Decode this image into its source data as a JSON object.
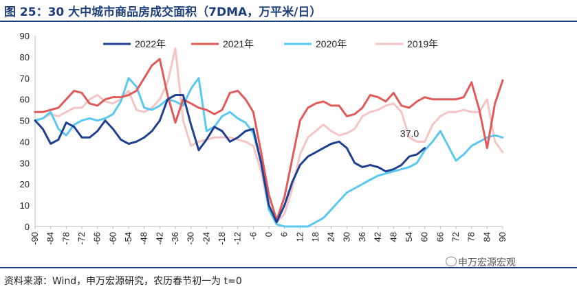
{
  "title": "图 25：30 大中城市商品房成交面积（7DMA，万平米/日）",
  "source": "资料来源：Wind，申万宏源研究，农历春节初一为 t=0",
  "brand": "申万宏源宏观",
  "brand_icon": "wechat-icon",
  "chart_data": {
    "type": "line",
    "title": "图 25：30 大中城市商品房成交面积（7DMA，万平米/日）",
    "xlabel": "",
    "ylabel": "",
    "xlim": [
      -90,
      90
    ],
    "ylim": [
      0,
      90
    ],
    "yticks": [
      0,
      10,
      20,
      30,
      40,
      50,
      60,
      70,
      80,
      90
    ],
    "xticks": [
      -90,
      -84,
      -78,
      -72,
      -66,
      -60,
      -54,
      -48,
      -42,
      -36,
      -30,
      -24,
      -18,
      -12,
      -6,
      0,
      6,
      12,
      18,
      24,
      30,
      36,
      42,
      48,
      54,
      60,
      66,
      72,
      78,
      84,
      90
    ],
    "grid": false,
    "legend_position": "top",
    "annotations": [
      {
        "text": "37.0",
        "x": 56,
        "y": 37.0,
        "series": "2022年"
      }
    ],
    "x": [
      -90,
      -87,
      -84,
      -81,
      -78,
      -75,
      -72,
      -69,
      -66,
      -63,
      -60,
      -57,
      -54,
      -51,
      -48,
      -45,
      -42,
      -39,
      -36,
      -33,
      -30,
      -27,
      -24,
      -21,
      -18,
      -15,
      -12,
      -9,
      -6,
      -3,
      0,
      3,
      6,
      9,
      12,
      15,
      18,
      21,
      24,
      27,
      30,
      33,
      36,
      39,
      42,
      45,
      48,
      51,
      54,
      57,
      60,
      63,
      66,
      69,
      72,
      75,
      78,
      81,
      84,
      87,
      90
    ],
    "series": [
      {
        "name": "2022年",
        "color": "#1f3f8f",
        "values": [
          50,
          46,
          39,
          41,
          49,
          47,
          42,
          42,
          45,
          50,
          46,
          41,
          39,
          40,
          42,
          45,
          50,
          60,
          62,
          62,
          48,
          36,
          41,
          47,
          45,
          40,
          42,
          45,
          46,
          30,
          10,
          2,
          10,
          21,
          29,
          33,
          35,
          37,
          39,
          40,
          37,
          30,
          28,
          29,
          28,
          26,
          27,
          29,
          33,
          34,
          37,
          null,
          null,
          null,
          null,
          null,
          null,
          null,
          null,
          null,
          null
        ]
      },
      {
        "name": "2021年",
        "color": "#e05a5a",
        "values": [
          54,
          54,
          55,
          56,
          60,
          64,
          63,
          58,
          57,
          60,
          61,
          61,
          62,
          64,
          70,
          76,
          79,
          62,
          49,
          60,
          58,
          56,
          55,
          53,
          55,
          63,
          64,
          60,
          54,
          35,
          15,
          3,
          14,
          32,
          50,
          56,
          58,
          59,
          57,
          57,
          52,
          53,
          56,
          62,
          61,
          59,
          63,
          57,
          56,
          59,
          61,
          60,
          60,
          60,
          60,
          61,
          68,
          55,
          37,
          58,
          69
        ]
      },
      {
        "name": "2020年",
        "color": "#5bc8ef",
        "values": [
          50,
          51,
          54,
          46,
          43,
          48,
          50,
          51,
          50,
          51,
          53,
          59,
          70,
          66,
          56,
          55,
          57,
          60,
          59,
          57,
          65,
          70,
          45,
          47,
          52,
          54,
          51,
          49,
          44,
          30,
          8,
          1,
          0,
          0,
          0,
          0,
          2,
          4,
          8,
          12,
          16,
          18,
          20,
          22,
          24,
          25,
          26,
          27,
          28,
          30,
          36,
          40,
          45,
          38,
          31,
          34,
          38,
          40,
          42,
          43,
          42
        ]
      },
      {
        "name": "2019年",
        "color": "#f5c4c4",
        "values": [
          50,
          51,
          53,
          52,
          54,
          56,
          56,
          60,
          62,
          59,
          58,
          60,
          64,
          55,
          54,
          56,
          60,
          68,
          84,
          50,
          38,
          40,
          41,
          42,
          42,
          42,
          41,
          40,
          38,
          26,
          8,
          2,
          6,
          18,
          34,
          42,
          45,
          48,
          45,
          43,
          44,
          46,
          52,
          54,
          55,
          57,
          58,
          54,
          42,
          40,
          40,
          48,
          52,
          54,
          54,
          55,
          54,
          54,
          60,
          40,
          35
        ]
      }
    ]
  }
}
